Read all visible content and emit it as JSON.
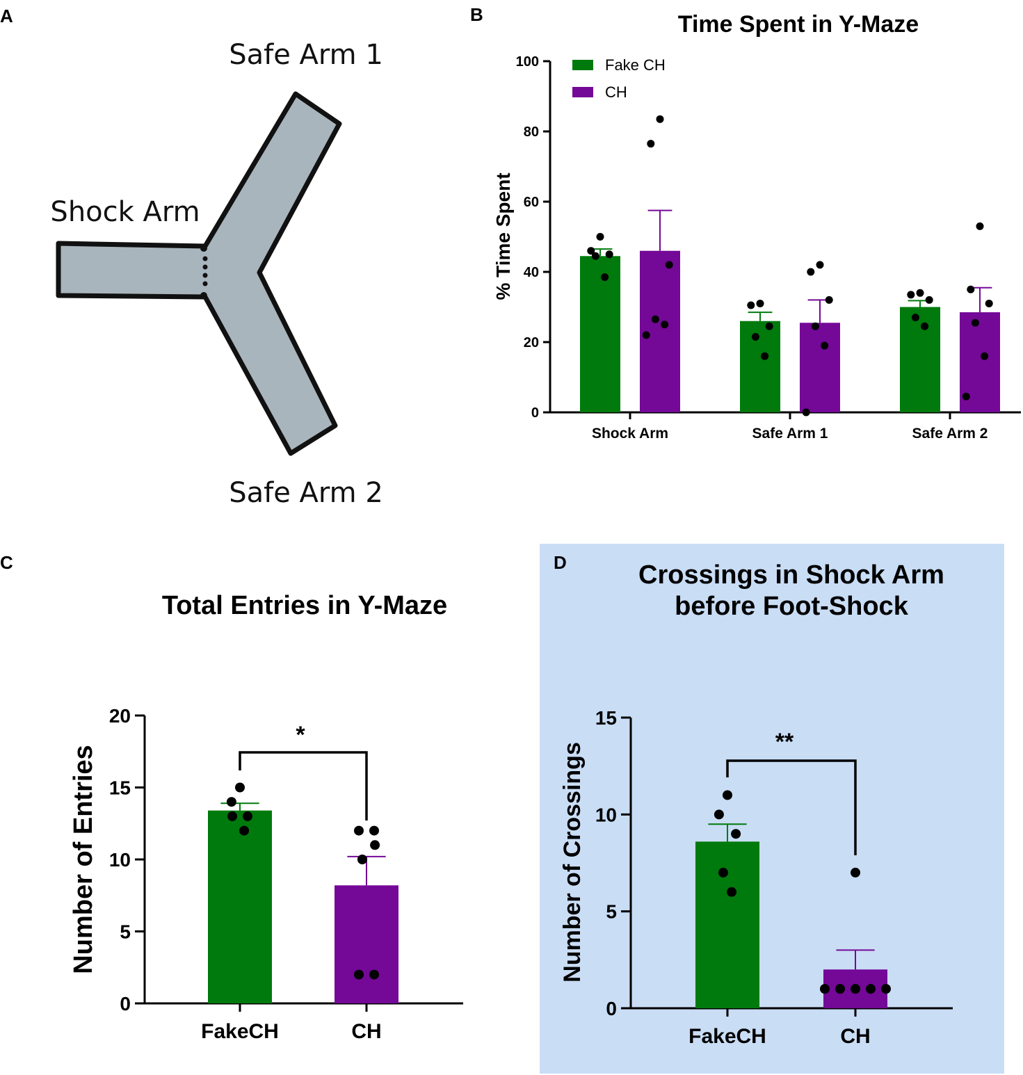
{
  "colors": {
    "fake": "#007A0C",
    "ch": "#740897",
    "panel_d_bg": "#C9DDF5",
    "maze_fill": "#A9B5BD"
  },
  "panel_a": {
    "letter": "A",
    "labels": {
      "safe_arm_1": "Safe Arm 1",
      "shock_arm": "Shock Arm",
      "safe_arm_2": "Safe Arm 2"
    }
  },
  "chart_data": [
    {
      "panel": "B",
      "type": "bar",
      "title": "Time Spent in Y-Maze",
      "ylabel": "% Time Spent",
      "xlabel": "",
      "ylim": [
        0,
        100
      ],
      "yticks": [
        0,
        20,
        40,
        60,
        80,
        100
      ],
      "categories": [
        "Shock Arm",
        "Safe Arm 1",
        "Safe Arm 2"
      ],
      "legend": {
        "position": "top-left",
        "entries": [
          "Fake CH",
          "CH"
        ]
      },
      "series": [
        {
          "name": "Fake CH",
          "values": [
            44.5,
            26,
            30
          ],
          "sem": [
            2,
            2.5,
            1.8
          ],
          "points": [
            [
              50,
              46,
              45,
              44.5,
              38.5
            ],
            [
              31,
              30.5,
              24.5,
              21.5,
              16
            ],
            [
              34,
              33.5,
              32,
              27,
              24.5
            ]
          ]
        },
        {
          "name": "CH",
          "values": [
            46,
            25.5,
            28.5
          ],
          "sem": [
            11.5,
            6.5,
            7
          ],
          "points": [
            [
              83.5,
              76.5,
              42,
              26.5,
              25,
              22
            ],
            [
              42,
              40,
              32,
              24.5,
              19,
              0
            ],
            [
              53,
              35,
              31,
              25.5,
              16,
              4.5
            ]
          ]
        }
      ]
    },
    {
      "panel": "C",
      "type": "bar",
      "title": "Total Entries in Y-Maze",
      "ylabel": "Number of Entries",
      "xlabel": "",
      "ylim": [
        0,
        20
      ],
      "yticks": [
        0,
        5,
        10,
        15,
        20
      ],
      "categories": [
        "FakeCH",
        "CH"
      ],
      "values": [
        13.4,
        8.2
      ],
      "sem": [
        0.5,
        2.0
      ],
      "points": [
        [
          15,
          14,
          13,
          13,
          12
        ],
        [
          12,
          12,
          11,
          10,
          2,
          2
        ]
      ],
      "significance": "*"
    },
    {
      "panel": "D",
      "type": "bar",
      "title": "Crossings in Shock  Arm before Foot-Shock",
      "title_lines": [
        "Crossings in Shock  Arm",
        "before Foot-Shock"
      ],
      "ylabel": "Number of Crossings",
      "xlabel": "",
      "ylim": [
        0,
        15
      ],
      "yticks": [
        0,
        5,
        10,
        15
      ],
      "categories": [
        "FakeCH",
        "CH"
      ],
      "values": [
        8.6,
        2.0
      ],
      "sem": [
        0.9,
        1.0
      ],
      "points": [
        [
          11,
          10,
          9,
          7,
          6
        ],
        [
          7,
          1,
          1,
          1,
          1,
          1
        ]
      ],
      "significance": "**"
    }
  ]
}
